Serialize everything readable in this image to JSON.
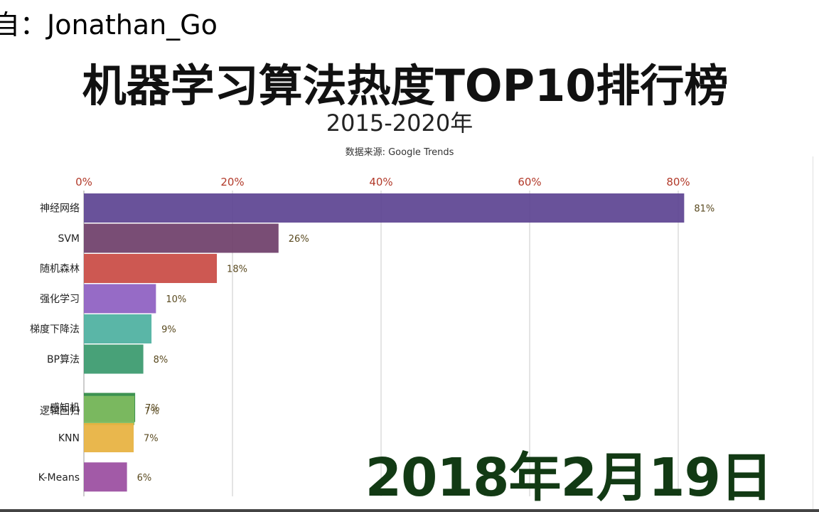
{
  "watermark": "自：Jonathan_Go",
  "chart_data": {
    "type": "bar",
    "orientation": "horizontal",
    "title": "机器学习算法热度TOP10排行榜",
    "subtitle": "2015-2020年",
    "source": "数据来源: Google Trends",
    "date_label": "2018年2月19日",
    "xlim": [
      0,
      84
    ],
    "x_ticks": [
      0,
      20,
      40,
      60,
      80
    ],
    "x_tick_labels": [
      "0%",
      "20%",
      "40%",
      "60%",
      "80%"
    ],
    "grid": true,
    "categories": [
      "神经网络",
      "SVM",
      "随机森林",
      "强化学习",
      "梯度下降法",
      "BP算法",
      "感知机",
      "逻辑回归",
      "KNN",
      "K-Means"
    ],
    "values": [
      80.8,
      26.2,
      17.9,
      9.7,
      9.1,
      8.0,
      6.9,
      6.8,
      6.7,
      5.8
    ],
    "value_labels": [
      "81%",
      "26%",
      "18%",
      "10%",
      "9%",
      "8%",
      "7%",
      "7%",
      "7%",
      "6%"
    ],
    "slot": [
      0,
      1,
      2,
      3,
      4,
      5,
      6.6,
      6.7,
      7.6,
      8.9
    ],
    "colors": [
      "#5e4592",
      "#6f3f6a",
      "#c94b45",
      "#8e60c2",
      "#4db0a0",
      "#3a9a6e",
      "#2e8a44",
      "#7fbb60",
      "#e7b23f",
      "#9b4ea0"
    ]
  }
}
